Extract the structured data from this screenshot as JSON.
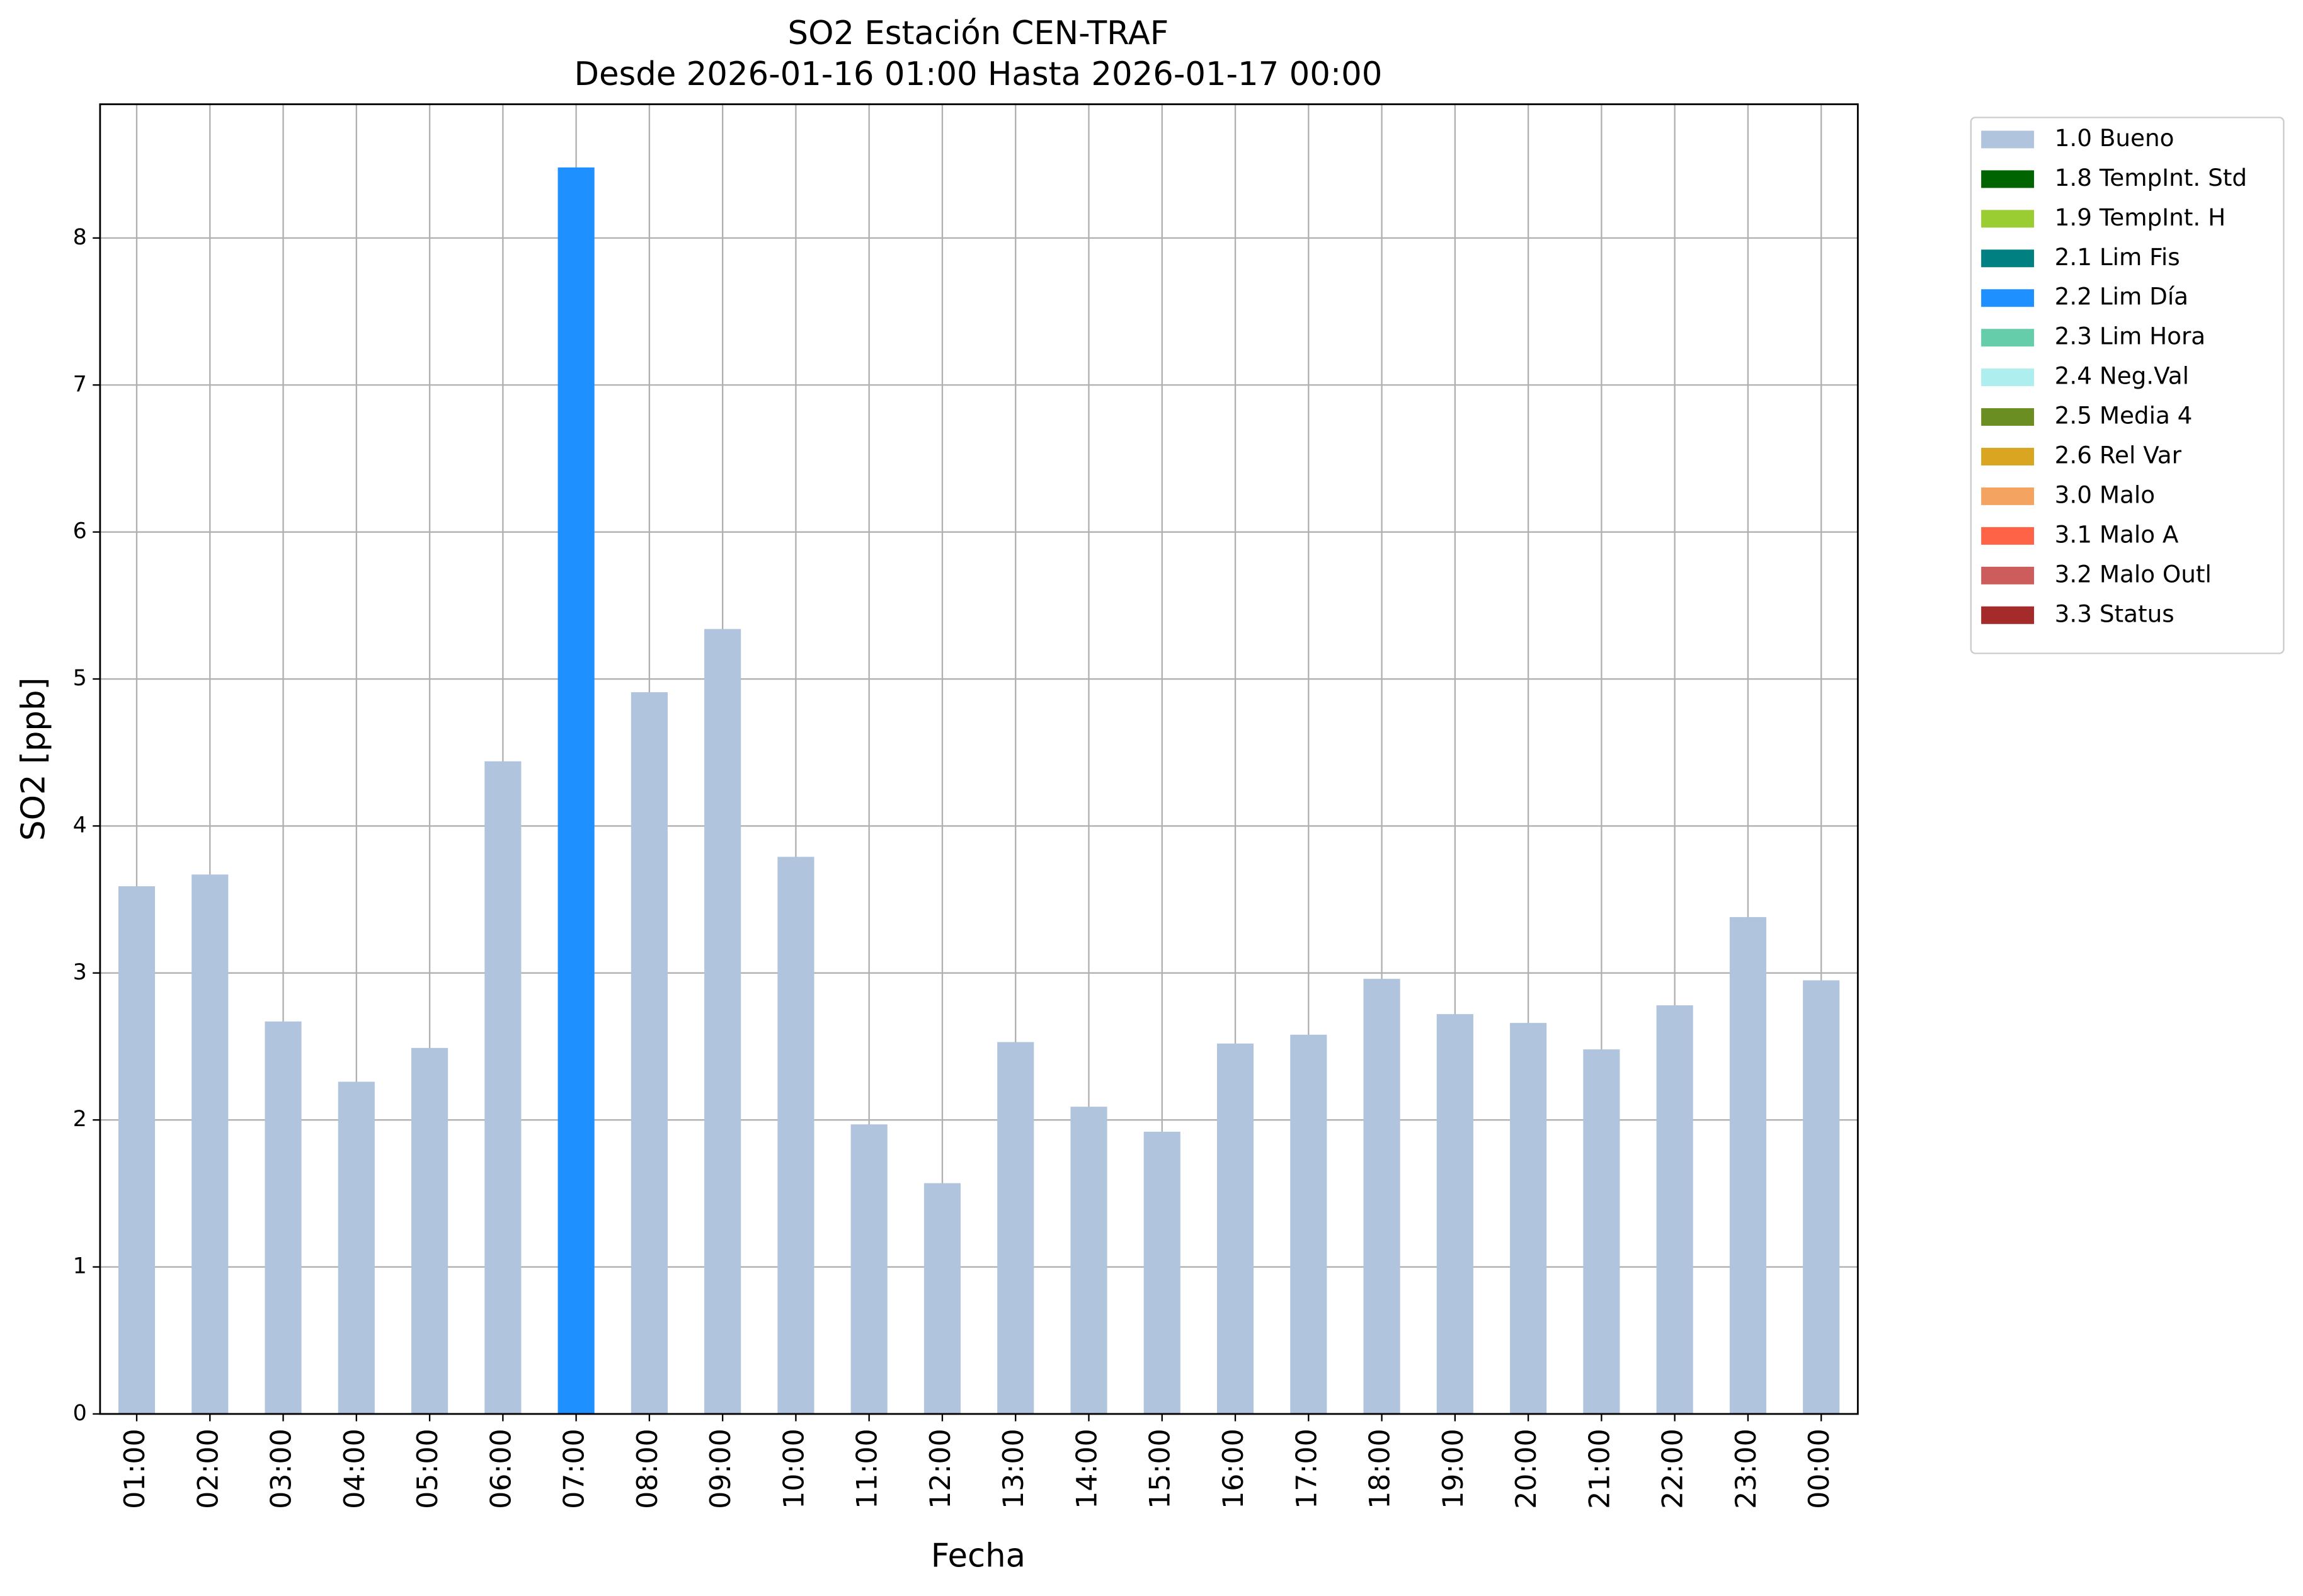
{
  "chart_data": {
    "type": "bar",
    "stacked": true,
    "title": "SO2 Estación CEN-TRAF",
    "subtitle": "Desde 2026-01-16 01:00 Hasta 2026-01-17 00:00",
    "x_label": "Fecha",
    "y_label": "SO2 [ppb]",
    "categories": [
      "01:00",
      "02:00",
      "03:00",
      "04:00",
      "05:00",
      "06:00",
      "07:00",
      "08:00",
      "09:00",
      "10:00",
      "11:00",
      "12:00",
      "13:00",
      "14:00",
      "15:00",
      "16:00",
      "17:00",
      "18:00",
      "19:00",
      "20:00",
      "21:00",
      "22:00",
      "23:00",
      "00:00"
    ],
    "series": [
      {
        "name": "1.0 Bueno",
        "color": "#b0c4de",
        "values": [
          3.59,
          3.67,
          2.67,
          2.26,
          2.49,
          4.44,
          null,
          4.91,
          5.34,
          3.79,
          1.97,
          1.57,
          2.53,
          2.09,
          1.92,
          2.52,
          2.58,
          2.96,
          2.72,
          2.66,
          2.48,
          2.78,
          3.38,
          2.95
        ]
      },
      {
        "name": "1.8 TempInt. Std",
        "color": "#006400",
        "values": [
          null,
          null,
          null,
          null,
          null,
          null,
          null,
          null,
          null,
          null,
          null,
          null,
          null,
          null,
          null,
          null,
          null,
          null,
          null,
          null,
          null,
          null,
          null,
          null
        ]
      },
      {
        "name": "1.9 TempInt. H",
        "color": "#9acd32",
        "values": [
          null,
          null,
          null,
          null,
          null,
          null,
          null,
          null,
          null,
          null,
          null,
          null,
          null,
          null,
          null,
          null,
          null,
          null,
          null,
          null,
          null,
          null,
          null,
          null
        ]
      },
      {
        "name": "2.1 Lim Fis",
        "color": "#008080",
        "values": [
          null,
          null,
          null,
          null,
          null,
          null,
          null,
          null,
          null,
          null,
          null,
          null,
          null,
          null,
          null,
          null,
          null,
          null,
          null,
          null,
          null,
          null,
          null,
          null
        ]
      },
      {
        "name": "2.2 Lim Día",
        "color": "#1e90ff",
        "values": [
          null,
          null,
          null,
          null,
          null,
          null,
          8.48,
          null,
          null,
          null,
          null,
          null,
          null,
          null,
          null,
          null,
          null,
          null,
          null,
          null,
          null,
          null,
          null,
          null
        ]
      },
      {
        "name": "2.3 Lim Hora",
        "color": "#66cdaa",
        "values": [
          null,
          null,
          null,
          null,
          null,
          null,
          null,
          null,
          null,
          null,
          null,
          null,
          null,
          null,
          null,
          null,
          null,
          null,
          null,
          null,
          null,
          null,
          null,
          null
        ]
      },
      {
        "name": "2.4 Neg.Val",
        "color": "#afeeee",
        "values": [
          null,
          null,
          null,
          null,
          null,
          null,
          null,
          null,
          null,
          null,
          null,
          null,
          null,
          null,
          null,
          null,
          null,
          null,
          null,
          null,
          null,
          null,
          null,
          null
        ]
      },
      {
        "name": "2.5 Media 4",
        "color": "#6b8e23",
        "values": [
          null,
          null,
          null,
          null,
          null,
          null,
          null,
          null,
          null,
          null,
          null,
          null,
          null,
          null,
          null,
          null,
          null,
          null,
          null,
          null,
          null,
          null,
          null,
          null
        ]
      },
      {
        "name": "2.6 Rel Var",
        "color": "#daa520",
        "values": [
          null,
          null,
          null,
          null,
          null,
          null,
          null,
          null,
          null,
          null,
          null,
          null,
          null,
          null,
          null,
          null,
          null,
          null,
          null,
          null,
          null,
          null,
          null,
          null
        ]
      },
      {
        "name": "3.0 Malo",
        "color": "#f4a460",
        "values": [
          null,
          null,
          null,
          null,
          null,
          null,
          null,
          null,
          null,
          null,
          null,
          null,
          null,
          null,
          null,
          null,
          null,
          null,
          null,
          null,
          null,
          null,
          null,
          null
        ]
      },
      {
        "name": "3.1 Malo A",
        "color": "#ff6347",
        "values": [
          null,
          null,
          null,
          null,
          null,
          null,
          null,
          null,
          null,
          null,
          null,
          null,
          null,
          null,
          null,
          null,
          null,
          null,
          null,
          null,
          null,
          null,
          null,
          null
        ]
      },
      {
        "name": "3.2 Malo Outl",
        "color": "#cd5c5c",
        "values": [
          null,
          null,
          null,
          null,
          null,
          null,
          null,
          null,
          null,
          null,
          null,
          null,
          null,
          null,
          null,
          null,
          null,
          null,
          null,
          null,
          null,
          null,
          null,
          null
        ]
      },
      {
        "name": "3.3 Status",
        "color": "#a52a2a",
        "values": [
          null,
          null,
          null,
          null,
          null,
          null,
          null,
          null,
          null,
          null,
          null,
          null,
          null,
          null,
          null,
          null,
          null,
          null,
          null,
          null,
          null,
          null,
          null,
          null
        ]
      }
    ],
    "ylim": [
      0,
      8.91
    ],
    "yticks": [
      0,
      1,
      2,
      3,
      4,
      5,
      6,
      7,
      8
    ],
    "grid": true,
    "legend": "outside-upper-right"
  }
}
